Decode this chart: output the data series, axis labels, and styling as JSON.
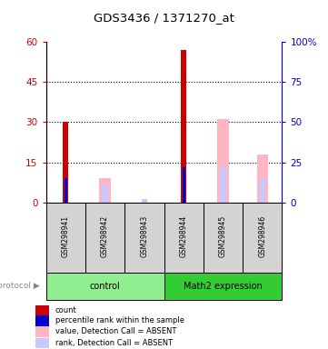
{
  "title": "GDS3436 / 1371270_at",
  "samples": [
    "GSM298941",
    "GSM298942",
    "GSM298943",
    "GSM298944",
    "GSM298945",
    "GSM298946"
  ],
  "ylim_left": [
    0,
    60
  ],
  "ylim_right": [
    0,
    100
  ],
  "yticks_left": [
    0,
    15,
    30,
    45,
    60
  ],
  "ytick_labels_right": [
    "0",
    "25",
    "50",
    "75",
    "100%"
  ],
  "yticks_right": [
    0,
    25,
    50,
    75,
    100
  ],
  "count_values": [
    30,
    0,
    0,
    57,
    0,
    0
  ],
  "percentile_values": [
    15,
    0,
    0,
    22,
    0,
    0
  ],
  "absent_value_values": [
    0,
    15,
    0,
    0,
    52,
    30
  ],
  "absent_rank_values": [
    0,
    11,
    2,
    0,
    22,
    15
  ],
  "count_color": "#cc0000",
  "percentile_color": "#0000cc",
  "absent_value_color": "#ffb6c1",
  "absent_rank_color": "#c8c8ff",
  "left_axis_color": "#cc0000",
  "right_axis_color": "#0000cc",
  "grid_color": "#000000",
  "sample_box_color": "#d3d3d3",
  "control_color": "#90ee90",
  "math2_color": "#33cc33",
  "background_color": "#ffffff",
  "legend_items": [
    {
      "label": "count",
      "color": "#cc0000"
    },
    {
      "label": "percentile rank within the sample",
      "color": "#0000cc"
    },
    {
      "label": "value, Detection Call = ABSENT",
      "color": "#ffb6c1"
    },
    {
      "label": "rank, Detection Call = ABSENT",
      "color": "#c8c8ff"
    }
  ]
}
